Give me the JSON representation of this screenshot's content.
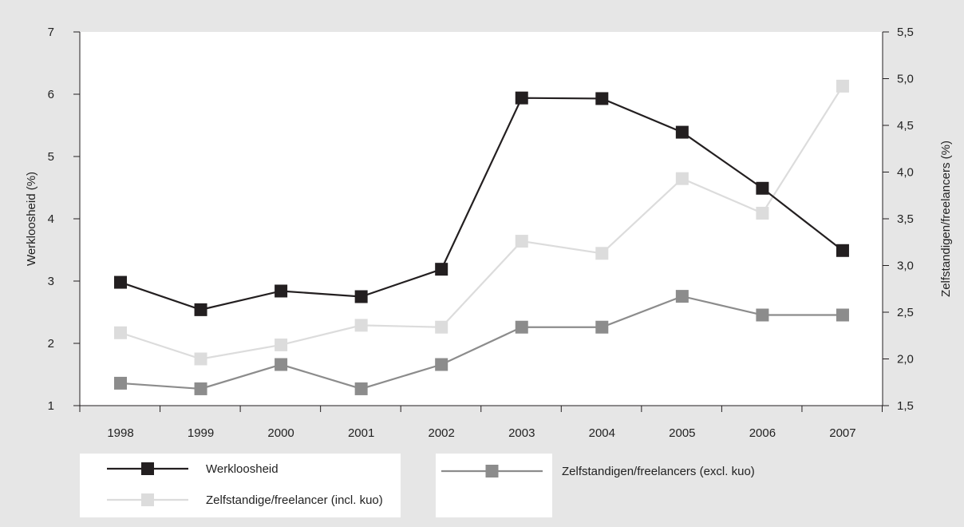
{
  "chart_data": {
    "type": "line",
    "title": "",
    "x": [
      "1998",
      "1999",
      "2000",
      "2001",
      "2002",
      "2003",
      "2004",
      "2005",
      "2006",
      "2007"
    ],
    "ylabel": "Werkloosheid (%)",
    "ylabel_right": "Zelfstandigen/freelancers (%)",
    "ylim": [
      1,
      7
    ],
    "ylim_right": [
      1.5,
      5.5
    ],
    "yticks": [
      "1",
      "2",
      "3",
      "4",
      "5",
      "6",
      "7"
    ],
    "yticks_right": [
      "1,5",
      "2,0",
      "2,5",
      "3,0",
      "3,5",
      "4,0",
      "4,5",
      "5,0",
      "5,5"
    ],
    "grid": false,
    "legend_position": "bottom",
    "series": [
      {
        "name": "Werkloosheid",
        "axis": "left",
        "color": "#231f20",
        "values": [
          2.98,
          2.54,
          2.84,
          2.75,
          3.19,
          5.94,
          5.93,
          5.39,
          4.49,
          3.49
        ]
      },
      {
        "name": "Zelfstandige/freelancer (incl. kuo)",
        "axis": "right",
        "color": "#dcdcdc",
        "values": [
          2.28,
          2.0,
          2.15,
          2.36,
          2.34,
          3.26,
          3.13,
          3.93,
          3.56,
          4.92
        ]
      },
      {
        "name": "Zelfstandigen/freelancers (excl. kuo)",
        "axis": "right",
        "color": "#8c8c8c",
        "values": [
          1.74,
          1.68,
          1.94,
          1.68,
          1.94,
          2.34,
          2.34,
          2.67,
          2.47,
          2.47
        ]
      }
    ]
  }
}
